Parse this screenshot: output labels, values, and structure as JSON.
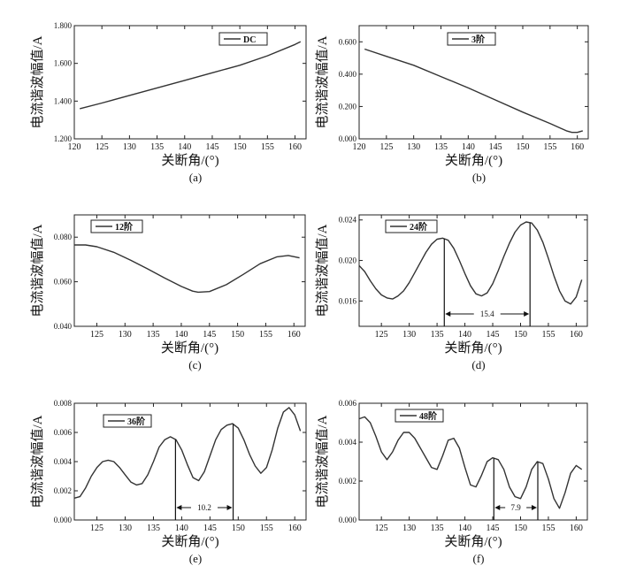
{
  "chart_data": [
    {
      "type": "line",
      "panel_label": "(a)",
      "xlabel": "关断角/(°)",
      "ylabel": "电流谐波幅值/A",
      "xlim": [
        120,
        162
      ],
      "ylim": [
        1.2,
        1.8
      ],
      "xticks": [
        "120",
        "125",
        "130",
        "135",
        "140",
        "145",
        "150",
        "155",
        "160"
      ],
      "yticks": [
        "1.200",
        "1.400",
        "1.600",
        "1.800"
      ],
      "legend_position": "top-right",
      "series": [
        {
          "name": "DC",
          "x": [
            121,
            125,
            130,
            135,
            140,
            145,
            150,
            155,
            160,
            161
          ],
          "y": [
            1.36,
            1.39,
            1.43,
            1.47,
            1.51,
            1.55,
            1.59,
            1.64,
            1.7,
            1.715
          ]
        }
      ]
    },
    {
      "type": "line",
      "panel_label": "(b)",
      "xlabel": "关断角/(°)",
      "ylabel": "电流谐波幅值/A",
      "xlim": [
        120,
        162
      ],
      "ylim": [
        0,
        0.7
      ],
      "xticks": [
        "120",
        "125",
        "130",
        "135",
        "140",
        "145",
        "150",
        "155",
        "160"
      ],
      "yticks": [
        "0.000",
        "0.200",
        "0.400",
        "0.600"
      ],
      "legend_position": "top-right",
      "series": [
        {
          "name": "3阶",
          "x": [
            121,
            125,
            130,
            135,
            140,
            145,
            150,
            155,
            158,
            159,
            160,
            161
          ],
          "y": [
            0.555,
            0.51,
            0.455,
            0.385,
            0.315,
            0.24,
            0.165,
            0.095,
            0.05,
            0.04,
            0.04,
            0.05
          ]
        }
      ]
    },
    {
      "type": "line",
      "panel_label": "(c)",
      "xlabel": "关断角/(°)",
      "ylabel": "电流谐波幅值/A",
      "xlim": [
        121,
        162
      ],
      "ylim": [
        0.04,
        0.09
      ],
      "xticks": [
        "125",
        "130",
        "135",
        "140",
        "145",
        "150",
        "155",
        "160"
      ],
      "yticks": [
        "0.040",
        "0.060",
        "0.080"
      ],
      "legend_position": "top-left",
      "series": [
        {
          "name": "12阶",
          "x": [
            121,
            123,
            125,
            128,
            131,
            134,
            137,
            140,
            142,
            143,
            145,
            148,
            151,
            154,
            157,
            159,
            161
          ],
          "y": [
            0.0765,
            0.0765,
            0.0757,
            0.0732,
            0.0697,
            0.0658,
            0.0617,
            0.0579,
            0.0558,
            0.0553,
            0.0556,
            0.0587,
            0.0633,
            0.0681,
            0.0712,
            0.0718,
            0.0707
          ]
        }
      ]
    },
    {
      "type": "line",
      "panel_label": "(d)",
      "xlabel": "关断角/(°)",
      "ylabel": "电流谐波幅值/A",
      "xlim": [
        121,
        162
      ],
      "ylim": [
        0.0135,
        0.0245
      ],
      "xticks": [
        "125",
        "130",
        "135",
        "140",
        "145",
        "150",
        "155",
        "160"
      ],
      "yticks": [
        "0.016",
        "0.020",
        "0.024"
      ],
      "legend_position": "top-left",
      "annotation": {
        "x1": 136.3,
        "x2": 151.7,
        "label": "15.4"
      },
      "series": [
        {
          "name": "24阶",
          "x": [
            121,
            122,
            123,
            124,
            125,
            126,
            127,
            128,
            129,
            130,
            131,
            132,
            133,
            134,
            135,
            136,
            137,
            138,
            139,
            140,
            141,
            142,
            143,
            144,
            145,
            146,
            147,
            148,
            149,
            150,
            151,
            152,
            153,
            154,
            155,
            156,
            157,
            158,
            159,
            160,
            161
          ],
          "y": [
            0.0195,
            0.0189,
            0.018,
            0.0172,
            0.0166,
            0.0163,
            0.0162,
            0.0165,
            0.017,
            0.0178,
            0.0188,
            0.0198,
            0.0208,
            0.0216,
            0.0221,
            0.0222,
            0.022,
            0.0212,
            0.02,
            0.0187,
            0.0175,
            0.0167,
            0.0165,
            0.0168,
            0.0177,
            0.019,
            0.0204,
            0.0217,
            0.0228,
            0.0235,
            0.0238,
            0.0237,
            0.023,
            0.0218,
            0.0202,
            0.0185,
            0.017,
            0.016,
            0.0157,
            0.0164,
            0.0181
          ]
        }
      ]
    },
    {
      "type": "line",
      "panel_label": "(e)",
      "xlabel": "关断角/(°)",
      "ylabel": "电流谐波幅值/A",
      "xlim": [
        121,
        162
      ],
      "ylim": [
        0,
        0.008
      ],
      "xticks": [
        "125",
        "130",
        "135",
        "140",
        "145",
        "150",
        "155",
        "160"
      ],
      "yticks": [
        "0.000",
        "0.002",
        "0.004",
        "0.006",
        "0.008"
      ],
      "legend_position": "top-left",
      "annotation": {
        "x1": 138.9,
        "x2": 149.1,
        "label": "10.2"
      },
      "series": [
        {
          "name": "36阶",
          "x": [
            121,
            122,
            123,
            124,
            125,
            126,
            127,
            128,
            129,
            130,
            131,
            132,
            133,
            134,
            135,
            136,
            137,
            138,
            139,
            140,
            141,
            142,
            143,
            144,
            145,
            146,
            147,
            148,
            149,
            150,
            151,
            152,
            153,
            154,
            155,
            156,
            157,
            158,
            159,
            160,
            161
          ],
          "y": [
            0.0015,
            0.0016,
            0.0022,
            0.003,
            0.0036,
            0.004,
            0.0041,
            0.004,
            0.0036,
            0.0031,
            0.0026,
            0.0024,
            0.0025,
            0.0031,
            0.004,
            0.005,
            0.0055,
            0.0057,
            0.0055,
            0.0048,
            0.0038,
            0.0029,
            0.0027,
            0.0033,
            0.0044,
            0.0055,
            0.0062,
            0.0065,
            0.0066,
            0.0063,
            0.0055,
            0.0045,
            0.0037,
            0.0032,
            0.0036,
            0.0048,
            0.0063,
            0.0074,
            0.0077,
            0.0072,
            0.0061
          ]
        }
      ]
    },
    {
      "type": "line",
      "panel_label": "(f)",
      "xlabel": "关断角/(°)",
      "ylabel": "电流谐波幅值/A",
      "xlim": [
        121,
        162
      ],
      "ylim": [
        0,
        0.006
      ],
      "xticks": [
        "125",
        "130",
        "135",
        "140",
        "145",
        "150",
        "155",
        "160"
      ],
      "yticks": [
        "0.000",
        "0.002",
        "0.004",
        "0.006"
      ],
      "legend_position": "top-right",
      "annotation": {
        "x1": 145.2,
        "x2": 153.1,
        "label": "7.9"
      },
      "series": [
        {
          "name": "48阶",
          "x": [
            121,
            122,
            123,
            124,
            125,
            126,
            127,
            128,
            129,
            130,
            131,
            132,
            133,
            134,
            135,
            136,
            137,
            138,
            139,
            140,
            141,
            142,
            143,
            144,
            145,
            146,
            147,
            148,
            149,
            150,
            151,
            152,
            153,
            154,
            155,
            156,
            157,
            158,
            159,
            160,
            161
          ],
          "y": [
            0.0052,
            0.0053,
            0.005,
            0.0043,
            0.0035,
            0.0031,
            0.0035,
            0.0041,
            0.0045,
            0.0045,
            0.0042,
            0.0037,
            0.0032,
            0.0027,
            0.0026,
            0.0033,
            0.0041,
            0.0042,
            0.0037,
            0.0027,
            0.0018,
            0.0017,
            0.0023,
            0.003,
            0.0032,
            0.0031,
            0.0026,
            0.0017,
            0.0012,
            0.0011,
            0.0017,
            0.0026,
            0.003,
            0.0029,
            0.0021,
            0.0011,
            0.0006,
            0.0014,
            0.0024,
            0.0028,
            0.0026
          ]
        }
      ]
    }
  ]
}
